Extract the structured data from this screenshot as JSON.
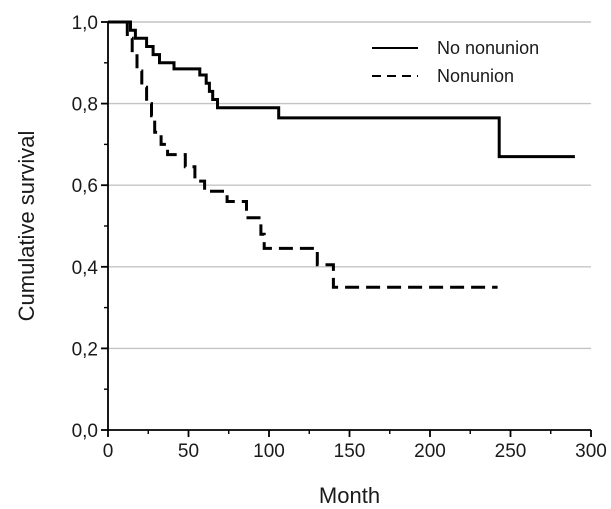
{
  "chart_data": {
    "type": "line",
    "step": true,
    "xlabel": "Month",
    "ylabel": "Cumulative survival",
    "xlim": [
      0,
      300
    ],
    "ylim": [
      0,
      1
    ],
    "x_ticks": [
      {
        "value": 0,
        "label": "0"
      },
      {
        "value": 50,
        "label": "50"
      },
      {
        "value": 100,
        "label": "100"
      },
      {
        "value": 150,
        "label": "150"
      },
      {
        "value": 200,
        "label": "200"
      },
      {
        "value": 250,
        "label": "250"
      },
      {
        "value": 300,
        "label": "300"
      }
    ],
    "y_ticks": [
      {
        "value": 0.0,
        "label": "0,0"
      },
      {
        "value": 0.2,
        "label": "0,2"
      },
      {
        "value": 0.4,
        "label": "0,4"
      },
      {
        "value": 0.6,
        "label": "0,6"
      },
      {
        "value": 0.8,
        "label": "0,8"
      },
      {
        "value": 1.0,
        "label": "1,0"
      }
    ],
    "grid": "horizontal",
    "legend_position": "top-right",
    "series": [
      {
        "name": "No nonunion",
        "style": "solid",
        "color": "#000000",
        "points": [
          [
            0,
            1.0
          ],
          [
            14,
            1.0
          ],
          [
            14,
            0.98
          ],
          [
            17,
            0.98
          ],
          [
            17,
            0.96
          ],
          [
            24,
            0.96
          ],
          [
            24,
            0.94
          ],
          [
            28,
            0.94
          ],
          [
            28,
            0.92
          ],
          [
            32,
            0.92
          ],
          [
            32,
            0.9
          ],
          [
            41,
            0.9
          ],
          [
            41,
            0.885
          ],
          [
            57,
            0.885
          ],
          [
            57,
            0.87
          ],
          [
            61,
            0.87
          ],
          [
            61,
            0.85
          ],
          [
            63,
            0.85
          ],
          [
            63,
            0.83
          ],
          [
            65,
            0.83
          ],
          [
            65,
            0.81
          ],
          [
            68,
            0.81
          ],
          [
            68,
            0.79
          ],
          [
            106,
            0.79
          ],
          [
            106,
            0.765
          ],
          [
            243,
            0.765
          ],
          [
            243,
            0.67
          ],
          [
            290,
            0.67
          ]
        ]
      },
      {
        "name": "Nonunion",
        "style": "dashed",
        "color": "#000000",
        "points": [
          [
            12,
            1.0
          ],
          [
            12,
            0.96
          ],
          [
            15,
            0.96
          ],
          [
            15,
            0.93
          ],
          [
            18,
            0.93
          ],
          [
            18,
            0.88
          ],
          [
            21,
            0.88
          ],
          [
            21,
            0.84
          ],
          [
            24,
            0.84
          ],
          [
            24,
            0.8
          ],
          [
            27,
            0.8
          ],
          [
            27,
            0.77
          ],
          [
            29,
            0.77
          ],
          [
            29,
            0.73
          ],
          [
            33,
            0.73
          ],
          [
            33,
            0.7
          ],
          [
            37,
            0.7
          ],
          [
            37,
            0.675
          ],
          [
            48,
            0.675
          ],
          [
            48,
            0.645
          ],
          [
            54,
            0.645
          ],
          [
            54,
            0.61
          ],
          [
            60,
            0.61
          ],
          [
            60,
            0.585
          ],
          [
            74,
            0.585
          ],
          [
            74,
            0.56
          ],
          [
            86,
            0.56
          ],
          [
            86,
            0.52
          ],
          [
            95,
            0.52
          ],
          [
            95,
            0.48
          ],
          [
            97,
            0.48
          ],
          [
            97,
            0.445
          ],
          [
            130,
            0.445
          ],
          [
            130,
            0.405
          ],
          [
            140,
            0.405
          ],
          [
            140,
            0.35
          ],
          [
            242,
            0.35
          ]
        ]
      }
    ]
  }
}
